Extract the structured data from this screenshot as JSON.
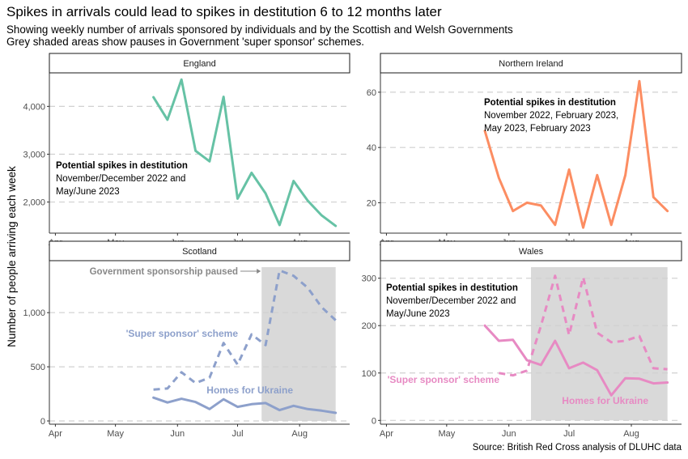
{
  "title": "Spikes in arrivals could lead to spikes in destitution 6 to 12 months later",
  "subtitle_lines": [
    "Showing weekly number of arrivals sponsored by individuals and by the Scottish and Welsh Governments",
    "Grey shaded areas show pauses in Government 'super sponsor' schemes."
  ],
  "ylabel": "Number of people arriving each week",
  "caption": "Source: British Red Cross analysis of DLUHC data",
  "colors": {
    "england": "#66c2a5",
    "northern_ireland": "#fc8d62",
    "scotland": "#8da0cb",
    "wales": "#e78ac3",
    "pause_shade": "#d9d9d9",
    "pause_label": "#888888"
  },
  "chart_data": [
    {
      "panel": "England",
      "type": "line",
      "x_axis_labels": [
        "Apr",
        "May",
        "Jun",
        "Jul",
        "Aug"
      ],
      "x_ticks": [
        "2022-04-01",
        "2022-05-01",
        "2022-06-01",
        "2022-07-01",
        "2022-08-01"
      ],
      "ylim": [
        1350,
        4700
      ],
      "y_ticks": [
        2000,
        3000,
        4000
      ],
      "y_tick_labels": [
        "2,000",
        "3,000",
        "4,000"
      ],
      "grid": "horizontal dashed",
      "series": [
        {
          "style": "solid",
          "x": [
            "2022-05-20",
            "2022-05-27",
            "2022-06-03",
            "2022-06-10",
            "2022-06-17",
            "2022-06-24",
            "2022-07-01",
            "2022-07-08",
            "2022-07-15",
            "2022-07-22",
            "2022-07-29",
            "2022-08-05",
            "2022-08-12",
            "2022-08-19"
          ],
          "values": [
            4190,
            3720,
            4560,
            3070,
            2850,
            4200,
            2070,
            2610,
            2180,
            1520,
            2440,
            2030,
            1720,
            1500
          ]
        }
      ],
      "annotations": [
        {
          "bold": "Potential spikes in destitution",
          "lines": [
            "November/December 2022 and",
            "May/June 2023"
          ]
        }
      ]
    },
    {
      "panel": "Northern Ireland",
      "type": "line",
      "x_axis_labels": [
        "Apr",
        "May",
        "Jun",
        "Jul",
        "Aug"
      ],
      "x_ticks": [
        "2022-04-01",
        "2022-05-01",
        "2022-06-01",
        "2022-07-01",
        "2022-08-01"
      ],
      "ylim": [
        9,
        67
      ],
      "y_ticks": [
        20,
        40,
        60
      ],
      "y_tick_labels": [
        "20",
        "40",
        "60"
      ],
      "grid": "horizontal dashed",
      "series": [
        {
          "style": "solid",
          "x": [
            "2022-05-20",
            "2022-05-27",
            "2022-06-03",
            "2022-06-10",
            "2022-06-17",
            "2022-06-24",
            "2022-07-01",
            "2022-07-08",
            "2022-07-15",
            "2022-07-22",
            "2022-07-29",
            "2022-08-05",
            "2022-08-12",
            "2022-08-19"
          ],
          "values": [
            46,
            29,
            17,
            20,
            19,
            12,
            32,
            11,
            30,
            12,
            30,
            64,
            22,
            17
          ]
        }
      ],
      "annotations": [
        {
          "bold": "Potential spikes in destitution",
          "lines": [
            "November 2022, February 2023,",
            "May 2023, February 2023"
          ]
        }
      ]
    },
    {
      "panel": "Scotland",
      "type": "line",
      "x_axis_labels": [
        "Apr",
        "May",
        "Jun",
        "Jul",
        "Aug"
      ],
      "x_ticks": [
        "2022-04-01",
        "2022-05-01",
        "2022-06-01",
        "2022-07-01",
        "2022-08-01"
      ],
      "ylim": [
        -30,
        1480
      ],
      "y_ticks": [
        0,
        500,
        1000
      ],
      "y_tick_labels": [
        "0",
        "500",
        "1,000"
      ],
      "grid": "horizontal dashed",
      "shaded_period": {
        "start": "2022-07-13",
        "end": "2022-08-19",
        "label": "Government sponsorship paused"
      },
      "series": [
        {
          "name": "'Super sponsor' scheme",
          "style": "dashed",
          "x": [
            "2022-05-20",
            "2022-05-27",
            "2022-06-03",
            "2022-06-10",
            "2022-06-17",
            "2022-06-24",
            "2022-07-01",
            "2022-07-08",
            "2022-07-15",
            "2022-07-22",
            "2022-07-29",
            "2022-08-05",
            "2022-08-12",
            "2022-08-19"
          ],
          "values": [
            290,
            300,
            450,
            350,
            400,
            720,
            520,
            800,
            700,
            1390,
            1340,
            1230,
            1050,
            930
          ]
        },
        {
          "name": "Homes for Ukraine",
          "style": "solid",
          "x": [
            "2022-05-20",
            "2022-05-27",
            "2022-06-03",
            "2022-06-10",
            "2022-06-17",
            "2022-06-24",
            "2022-07-01",
            "2022-07-08",
            "2022-07-15",
            "2022-07-22",
            "2022-07-29",
            "2022-08-05",
            "2022-08-12",
            "2022-08-19"
          ],
          "values": [
            215,
            170,
            205,
            175,
            110,
            200,
            130,
            155,
            165,
            100,
            140,
            110,
            95,
            75
          ]
        }
      ]
    },
    {
      "panel": "Wales",
      "type": "line",
      "x_axis_labels": [
        "Apr",
        "May",
        "Jun",
        "Jul",
        "Aug"
      ],
      "x_ticks": [
        "2022-04-01",
        "2022-05-01",
        "2022-06-01",
        "2022-07-01",
        "2022-08-01"
      ],
      "ylim": [
        -8,
        337
      ],
      "y_ticks": [
        0,
        100,
        200,
        300
      ],
      "y_tick_labels": [
        "0",
        "100",
        "200",
        "300"
      ],
      "grid": "horizontal dashed",
      "shaded_period": {
        "start": "2022-06-12",
        "end": "2022-08-19"
      },
      "series": [
        {
          "name": "'Super sponsor' scheme",
          "style": "dashed",
          "x": [
            "2022-05-27",
            "2022-06-03",
            "2022-06-10",
            "2022-06-17",
            "2022-06-24",
            "2022-07-01",
            "2022-07-08",
            "2022-07-15",
            "2022-07-22",
            "2022-07-29",
            "2022-08-05",
            "2022-08-12",
            "2022-08-19"
          ],
          "values": [
            100,
            95,
            105,
            200,
            305,
            180,
            302,
            185,
            165,
            168,
            178,
            110,
            108
          ]
        },
        {
          "name": "Homes for Ukraine",
          "style": "solid",
          "x": [
            "2022-05-20",
            "2022-05-27",
            "2022-06-03",
            "2022-06-10",
            "2022-06-17",
            "2022-06-24",
            "2022-07-01",
            "2022-07-08",
            "2022-07-15",
            "2022-07-22",
            "2022-07-29",
            "2022-08-05",
            "2022-08-12",
            "2022-08-19"
          ],
          "values": [
            200,
            168,
            170,
            127,
            117,
            168,
            110,
            122,
            106,
            53,
            89,
            88,
            78,
            80
          ]
        }
      ],
      "annotations": [
        {
          "bold": "Potential spikes in destitution",
          "lines": [
            "November/December 2022 and",
            "May/June 2023"
          ]
        }
      ]
    }
  ]
}
